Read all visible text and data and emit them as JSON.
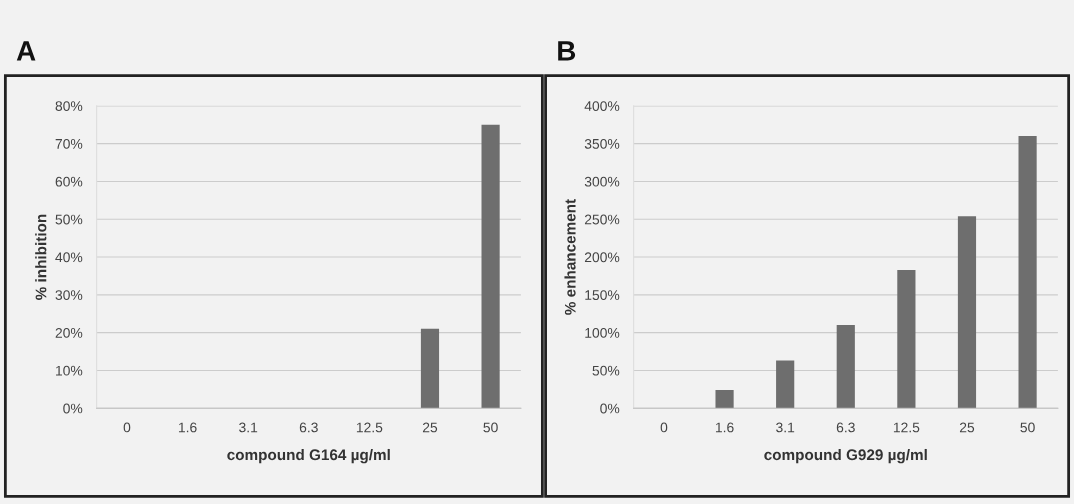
{
  "chart_data": [
    {
      "type": "bar",
      "title": "A",
      "xlabel": "compound G164 µg/ml",
      "ylabel": "% inhibition",
      "categories": [
        "0",
        "1.6",
        "3.1",
        "6.3",
        "12.5",
        "25",
        "50"
      ],
      "values": [
        0,
        0,
        0,
        0,
        0,
        21,
        75
      ],
      "color": "#6e6e6e",
      "ylim": [
        0,
        80
      ],
      "yticks": [
        {
          "value": 0,
          "label": "0%"
        },
        {
          "value": 10,
          "label": "10%"
        },
        {
          "value": 20,
          "label": "20%"
        },
        {
          "value": 30,
          "label": "30%"
        },
        {
          "value": 40,
          "label": "40%"
        },
        {
          "value": 50,
          "label": "50%"
        },
        {
          "value": 60,
          "label": "60%"
        },
        {
          "value": 70,
          "label": "70%"
        },
        {
          "value": 80,
          "label": "80%"
        }
      ],
      "grid": "y",
      "legend": false
    },
    {
      "type": "bar",
      "title": "B",
      "xlabel": "compound G929 µg/ml",
      "ylabel": "% enhancement",
      "categories": [
        "0",
        "1.6",
        "3.1",
        "6.3",
        "12.5",
        "25",
        "50"
      ],
      "values": [
        0,
        24,
        63,
        110,
        183,
        254,
        360
      ],
      "color": "#6e6e6e",
      "ylim": [
        0,
        400
      ],
      "yticks": [
        {
          "value": 0,
          "label": "0%"
        },
        {
          "value": 50,
          "label": "50%"
        },
        {
          "value": 100,
          "label": "100%"
        },
        {
          "value": 150,
          "label": "150%"
        },
        {
          "value": 200,
          "label": "200%"
        },
        {
          "value": 250,
          "label": "250%"
        },
        {
          "value": 300,
          "label": "300%"
        },
        {
          "value": 350,
          "label": "350%"
        },
        {
          "value": 400,
          "label": "400%"
        }
      ],
      "grid": "y",
      "legend": false
    }
  ]
}
